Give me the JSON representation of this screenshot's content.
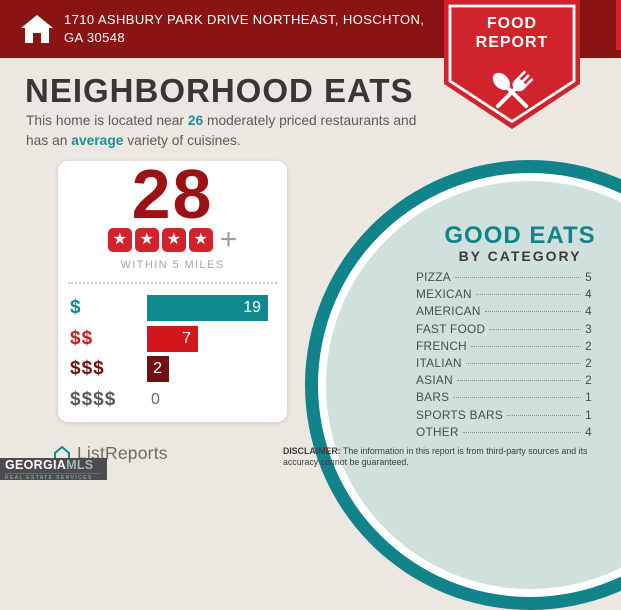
{
  "header": {
    "address": "1710 ASHBURY PARK DRIVE NORTHEAST, HOSCHTON, GA 30548",
    "badge_line1": "FOOD",
    "badge_line2": "REPORT"
  },
  "intro": {
    "title": "NEIGHBORHOOD EATS",
    "subtitle_part1": "This home is located near ",
    "subtitle_count": "26",
    "subtitle_part2": " moderately priced restaurants and has an ",
    "subtitle_highlight": "average",
    "subtitle_part3": " variety of cuisines."
  },
  "summary_card": {
    "restaurant_count": "28",
    "star_rating": 4,
    "plus_sign": "+",
    "caption": "WITHIN 5 MILES"
  },
  "chart_data": {
    "type": "bar",
    "orientation": "horizontal",
    "title": "",
    "xlabel": "",
    "ylabel": "",
    "categories": [
      "$",
      "$$",
      "$$$",
      "$$$$"
    ],
    "values": [
      19,
      7,
      2,
      0
    ],
    "xlim": [
      0,
      19
    ],
    "grid": false,
    "legend": false,
    "bar_colors": [
      "#0e8a8e",
      "#d2161c",
      "#701013",
      null
    ],
    "label_colors": [
      "#0e8a8e",
      "#d2161c",
      "#701013",
      "#58595b"
    ],
    "value_label_color_inside": "#ffffff",
    "value_label_color_zero": "#6b6b6b"
  },
  "good_eats": {
    "title": "GOOD EATS",
    "subtitle": "BY CATEGORY",
    "items": [
      {
        "label": "PIZZA",
        "value": "5"
      },
      {
        "label": "MEXICAN",
        "value": "4"
      },
      {
        "label": "AMERICAN",
        "value": "4"
      },
      {
        "label": "FAST FOOD",
        "value": "3"
      },
      {
        "label": "FRENCH",
        "value": "2"
      },
      {
        "label": "ITALIAN",
        "value": "2"
      },
      {
        "label": "ASIAN",
        "value": "2"
      },
      {
        "label": "BARS",
        "value": "1"
      },
      {
        "label": "SPORTS BARS",
        "value": "1"
      },
      {
        "label": "OTHER",
        "value": "4"
      }
    ]
  },
  "footer": {
    "brand_name": "ListReports",
    "mls_name_primary": "GEORGIA",
    "mls_name_secondary": "MLS",
    "mls_tagline": "REAL ESTATE SERVICES",
    "disclaimer_label": "DISCLAIMER:",
    "disclaimer_text": " The information in this report is from third-party sources and its accuracy cannot be guaranteed."
  },
  "colors": {
    "header_maroon": "#8a1414",
    "badge_red": "#d1232b",
    "accent_teal": "#12838b",
    "dark_red": "#9b1114",
    "background_beige": "#ece7e0",
    "circle_fill": "#cfe0dd",
    "card_white": "#ffffff"
  }
}
